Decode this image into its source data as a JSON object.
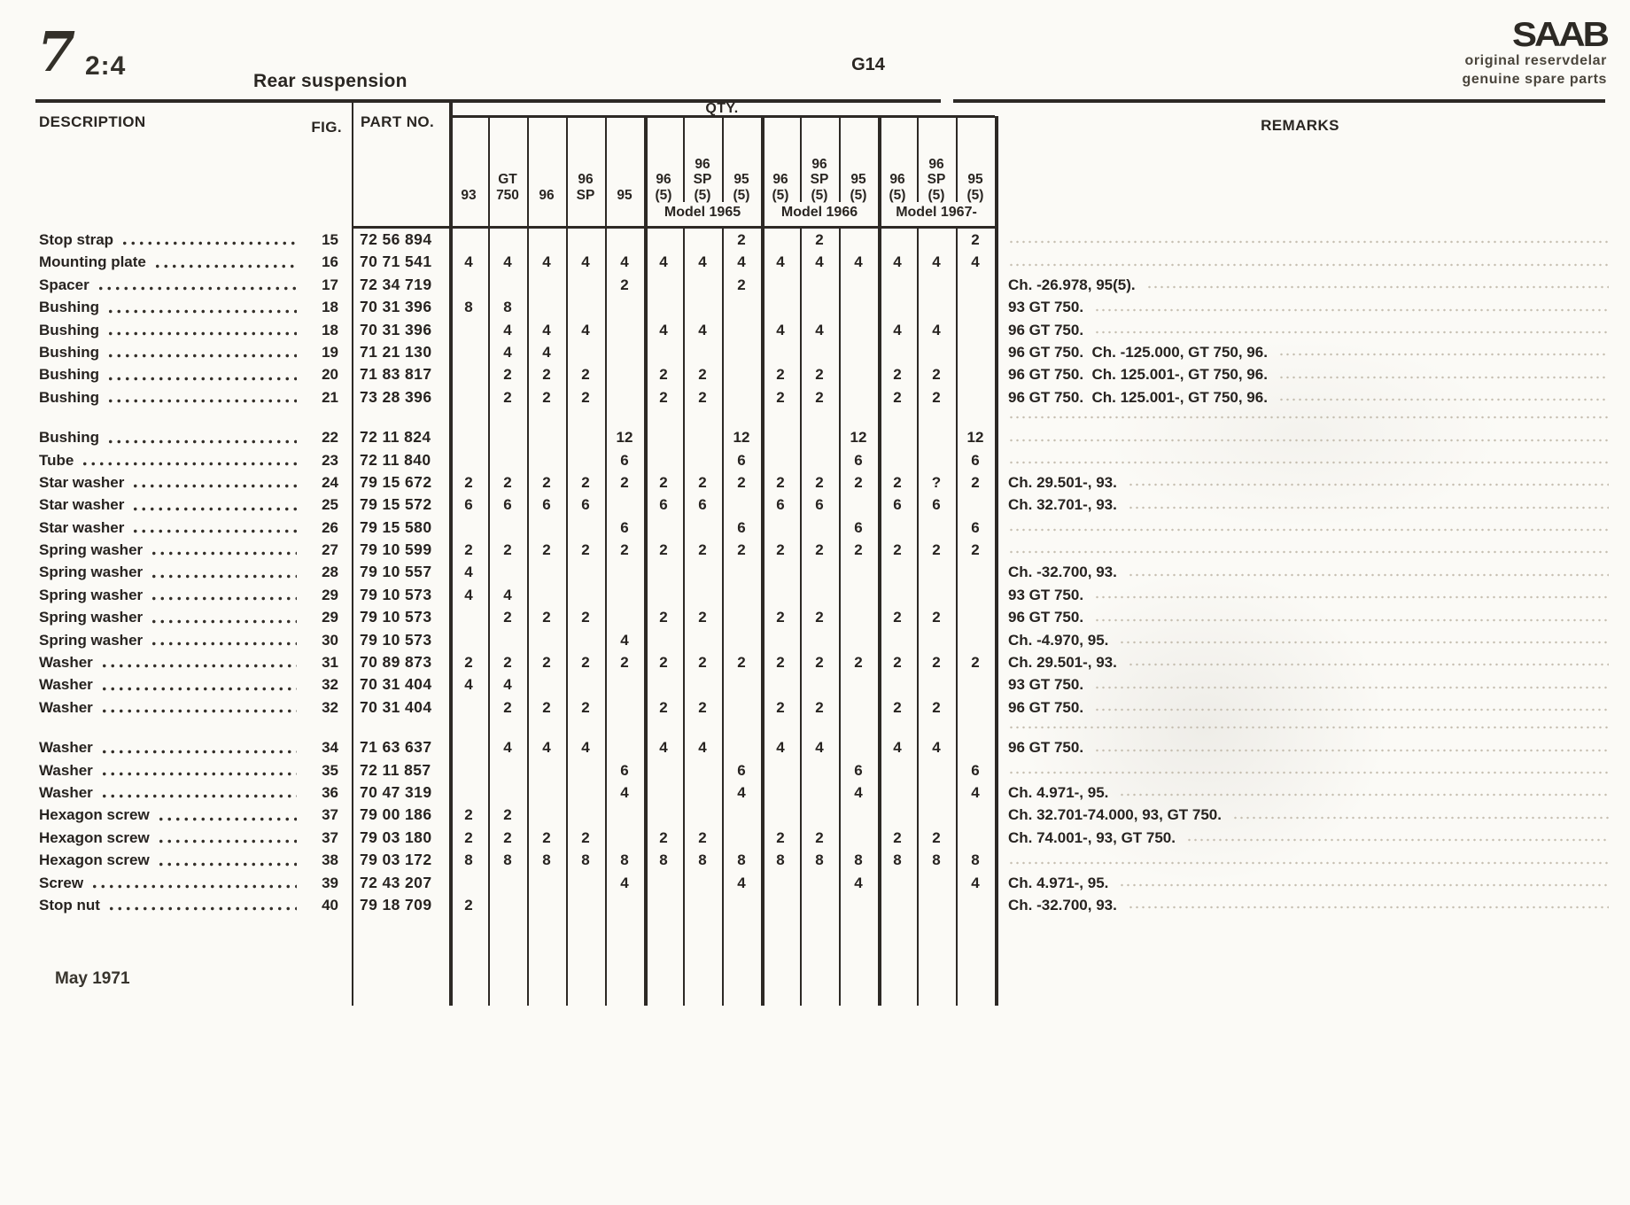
{
  "page": {
    "page_number": "7",
    "section": "2:4",
    "title": "Rear suspension",
    "drawing_code": "G14",
    "footer_date": "May 1971",
    "brand": {
      "logo": "SAAB",
      "line1": "original reservdelar",
      "line2": "genuine spare parts"
    }
  },
  "table": {
    "headers": {
      "description": "DESCRIPTION",
      "fig": "FIG.",
      "part_no": "PART NO.",
      "qty": "QTY.",
      "remarks": "REMARKS"
    },
    "qty_columns": [
      {
        "label": "93",
        "lines": [
          "93"
        ]
      },
      {
        "label": "GT 750",
        "lines": [
          "GT",
          "750"
        ]
      },
      {
        "label": "96",
        "lines": [
          "96"
        ]
      },
      {
        "label": "96 SP",
        "lines": [
          "96",
          "SP"
        ]
      },
      {
        "label": "95",
        "lines": [
          "95"
        ]
      },
      {
        "label": "96 (5) Model 1965",
        "lines": [
          "96",
          "(5)"
        ]
      },
      {
        "label": "96 SP (5) Model 1965",
        "lines": [
          "96",
          "SP",
          "(5)"
        ]
      },
      {
        "label": "95 (5) Model 1965",
        "lines": [
          "95",
          "(5)"
        ]
      },
      {
        "label": "96 (5) Model 1966",
        "lines": [
          "96",
          "(5)"
        ]
      },
      {
        "label": "96 SP (5) Model 1966",
        "lines": [
          "96",
          "SP",
          "(5)"
        ]
      },
      {
        "label": "95 (5) Model 1966",
        "lines": [
          "95",
          "(5)"
        ]
      },
      {
        "label": "96 (5) Model 1967-",
        "lines": [
          "96",
          "(5)"
        ]
      },
      {
        "label": "96 SP (5) Model 1967-",
        "lines": [
          "96",
          "SP",
          "(5)"
        ]
      },
      {
        "label": "95 (5) Model 1967-",
        "lines": [
          "95",
          "(5)"
        ]
      }
    ],
    "model_groups": [
      "Model 1965",
      "Model 1966",
      "Model 1967-"
    ],
    "rows": [
      {
        "description": "Stop strap",
        "fig": "15",
        "part_no": "72 56 894",
        "qty": [
          "",
          "",
          "",
          "",
          "",
          "",
          "",
          "2",
          "",
          "2",
          "",
          "",
          "",
          "2"
        ],
        "remark": ""
      },
      {
        "description": "Mounting plate",
        "fig": "16",
        "part_no": "70 71 541",
        "qty": [
          "4",
          "4",
          "4",
          "4",
          "4",
          "4",
          "4",
          "4",
          "4",
          "4",
          "4",
          "4",
          "4",
          "4"
        ],
        "remark": ""
      },
      {
        "description": "Spacer",
        "fig": "17",
        "part_no": "72 34 719",
        "qty": [
          "",
          "",
          "",
          "",
          "2",
          "",
          "",
          "2",
          "",
          "",
          "",
          "",
          "",
          ""
        ],
        "remark": "Ch. -26.978, 95(5)."
      },
      {
        "description": "Bushing",
        "fig": "18",
        "part_no": "70 31 396",
        "qty": [
          "8",
          "8",
          "",
          "",
          "",
          "",
          "",
          "",
          "",
          "",
          "",
          "",
          "",
          ""
        ],
        "remark": "93 GT 750."
      },
      {
        "description": "Bushing",
        "fig": "18",
        "part_no": "70 31 396",
        "qty": [
          "",
          "4",
          "4",
          "4",
          "",
          "4",
          "4",
          "",
          "4",
          "4",
          "",
          "4",
          "4",
          ""
        ],
        "remark": "96 GT 750."
      },
      {
        "description": "Bushing",
        "fig": "19",
        "part_no": "71 21 130",
        "qty": [
          "",
          "4",
          "4",
          "",
          "",
          "",
          "",
          "",
          "",
          "",
          "",
          "",
          "",
          ""
        ],
        "remark": "96 GT 750.  Ch. -125.000, GT 750, 96."
      },
      {
        "description": "Bushing",
        "fig": "20",
        "part_no": "71 83 817",
        "qty": [
          "",
          "2",
          "2",
          "2",
          "",
          "2",
          "2",
          "",
          "2",
          "2",
          "",
          "2",
          "2",
          ""
        ],
        "remark": "96 GT 750.  Ch. 125.001-, GT 750, 96."
      },
      {
        "description": "Bushing",
        "fig": "21",
        "part_no": "73 28 396",
        "qty": [
          "",
          "2",
          "2",
          "2",
          "",
          "2",
          "2",
          "",
          "2",
          "2",
          "",
          "2",
          "2",
          ""
        ],
        "remark": "96 GT 750.  Ch. 125.001-, GT 750, 96."
      },
      {
        "description": "Bushing",
        "fig": "22",
        "part_no": "72 11 824",
        "group_break": true,
        "qty": [
          "",
          "",
          "",
          "",
          "12",
          "",
          "",
          "12",
          "",
          "",
          "12",
          "",
          "",
          "12"
        ],
        "remark": ""
      },
      {
        "description": "Tube",
        "fig": "23",
        "part_no": "72 11 840",
        "qty": [
          "",
          "",
          "",
          "",
          "6",
          "",
          "",
          "6",
          "",
          "",
          "6",
          "",
          "",
          "6"
        ],
        "remark": ""
      },
      {
        "description": "Star washer",
        "fig": "24",
        "part_no": "79 15 672",
        "qty": [
          "2",
          "2",
          "2",
          "2",
          "2",
          "2",
          "2",
          "2",
          "2",
          "2",
          "2",
          "2",
          "?",
          "2"
        ],
        "remark": "Ch. 29.501-, 93."
      },
      {
        "description": "Star washer",
        "fig": "25",
        "part_no": "79 15 572",
        "qty": [
          "6",
          "6",
          "6",
          "6",
          "",
          "6",
          "6",
          "",
          "6",
          "6",
          "",
          "6",
          "6",
          ""
        ],
        "remark": "Ch. 32.701-, 93."
      },
      {
        "description": "Star washer",
        "fig": "26",
        "part_no": "79 15 580",
        "qty": [
          "",
          "",
          "",
          "",
          "6",
          "",
          "",
          "6",
          "",
          "",
          "6",
          "",
          "",
          "6"
        ],
        "remark": ""
      },
      {
        "description": "Spring washer",
        "fig": "27",
        "part_no": "79 10 599",
        "qty": [
          "2",
          "2",
          "2",
          "2",
          "2",
          "2",
          "2",
          "2",
          "2",
          "2",
          "2",
          "2",
          "2",
          "2"
        ],
        "remark": ""
      },
      {
        "description": "Spring washer",
        "fig": "28",
        "part_no": "79 10 557",
        "qty": [
          "4",
          "",
          "",
          "",
          "",
          "",
          "",
          "",
          "",
          "",
          "",
          "",
          "",
          ""
        ],
        "remark": "Ch. -32.700, 93."
      },
      {
        "description": "Spring washer",
        "fig": "29",
        "part_no": "79 10 573",
        "qty": [
          "4",
          "4",
          "",
          "",
          "",
          "",
          "",
          "",
          "",
          "",
          "",
          "",
          "",
          ""
        ],
        "remark": "93 GT 750."
      },
      {
        "description": "Spring washer",
        "fig": "29",
        "part_no": "79 10 573",
        "qty": [
          "",
          "2",
          "2",
          "2",
          "",
          "2",
          "2",
          "",
          "2",
          "2",
          "",
          "2",
          "2",
          ""
        ],
        "remark": "96 GT 750."
      },
      {
        "description": "Spring washer",
        "fig": "30",
        "part_no": "79 10 573",
        "qty": [
          "",
          "",
          "",
          "",
          "4",
          "",
          "",
          "",
          "",
          "",
          "",
          "",
          "",
          ""
        ],
        "remark": "Ch. -4.970, 95."
      },
      {
        "description": "Washer",
        "fig": "31",
        "part_no": "70 89 873",
        "qty": [
          "2",
          "2",
          "2",
          "2",
          "2",
          "2",
          "2",
          "2",
          "2",
          "2",
          "2",
          "2",
          "2",
          "2"
        ],
        "remark": "Ch. 29.501-, 93."
      },
      {
        "description": "Washer",
        "fig": "32",
        "part_no": "70 31 404",
        "qty": [
          "4",
          "4",
          "",
          "",
          "",
          "",
          "",
          "",
          "",
          "",
          "",
          "",
          "",
          ""
        ],
        "remark": "93 GT 750."
      },
      {
        "description": "Washer",
        "fig": "32",
        "part_no": "70 31 404",
        "qty": [
          "",
          "2",
          "2",
          "2",
          "",
          "2",
          "2",
          "",
          "2",
          "2",
          "",
          "2",
          "2",
          ""
        ],
        "remark": "96 GT 750."
      },
      {
        "description": "Washer",
        "fig": "34",
        "part_no": "71 63 637",
        "group_break": true,
        "qty": [
          "",
          "4",
          "4",
          "4",
          "",
          "4",
          "4",
          "",
          "4",
          "4",
          "",
          "4",
          "4",
          ""
        ],
        "remark": "96 GT 750."
      },
      {
        "description": "Washer",
        "fig": "35",
        "part_no": "72 11 857",
        "qty": [
          "",
          "",
          "",
          "",
          "6",
          "",
          "",
          "6",
          "",
          "",
          "6",
          "",
          "",
          "6"
        ],
        "remark": ""
      },
      {
        "description": "Washer",
        "fig": "36",
        "part_no": "70 47 319",
        "qty": [
          "",
          "",
          "",
          "",
          "4",
          "",
          "",
          "4",
          "",
          "",
          "4",
          "",
          "",
          "4"
        ],
        "remark": "Ch. 4.971-, 95."
      },
      {
        "description": "Hexagon screw",
        "fig": "37",
        "part_no": "79 00 186",
        "qty": [
          "2",
          "2",
          "",
          "",
          "",
          "",
          "",
          "",
          "",
          "",
          "",
          "",
          "",
          ""
        ],
        "remark": "Ch. 32.701-74.000, 93, GT 750."
      },
      {
        "description": "Hexagon screw",
        "fig": "37",
        "part_no": "79 03 180",
        "qty": [
          "2",
          "2",
          "2",
          "2",
          "",
          "2",
          "2",
          "",
          "2",
          "2",
          "",
          "2",
          "2",
          ""
        ],
        "remark": "Ch. 74.001-, 93, GT 750."
      },
      {
        "description": "Hexagon screw",
        "fig": "38",
        "part_no": "79 03 172",
        "qty": [
          "8",
          "8",
          "8",
          "8",
          "8",
          "8",
          "8",
          "8",
          "8",
          "8",
          "8",
          "8",
          "8",
          "8"
        ],
        "remark": ""
      },
      {
        "description": "Screw",
        "fig": "39",
        "part_no": "72 43 207",
        "qty": [
          "",
          "",
          "",
          "",
          "4",
          "",
          "",
          "4",
          "",
          "",
          "4",
          "",
          "",
          "4"
        ],
        "remark": "Ch. 4.971-, 95."
      },
      {
        "description": "Stop nut",
        "fig": "40",
        "part_no": "79 18 709",
        "qty": [
          "2",
          "",
          "",
          "",
          "",
          "",
          "",
          "",
          "",
          "",
          "",
          "",
          "",
          ""
        ],
        "remark": "Ch. -32.700, 93."
      }
    ]
  }
}
